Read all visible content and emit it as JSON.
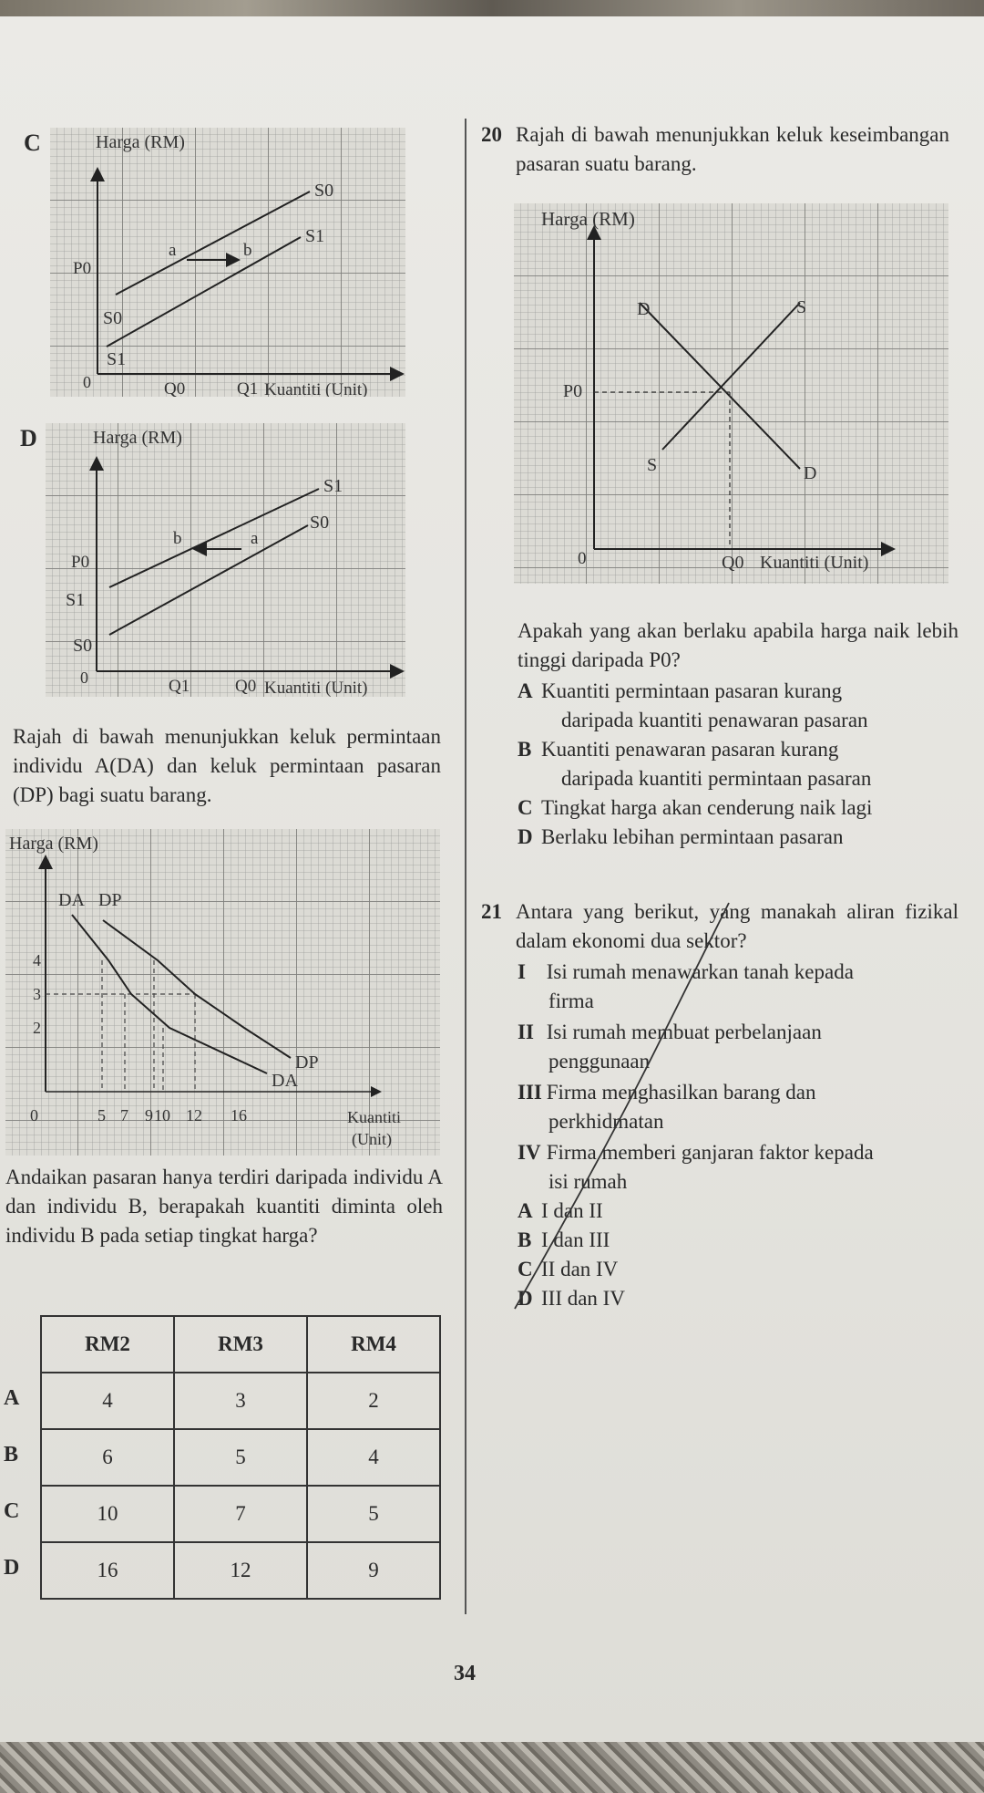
{
  "option_c_chart": {
    "letter": "C",
    "y_label": "Harga (RM)",
    "x_label": "Kuantiti (Unit)",
    "origin": "0",
    "price": "P0",
    "q_a": "Q0",
    "q_b": "Q1",
    "point_a": "a",
    "point_b": "b",
    "upper_curve": "S0",
    "lower_curve": "S1"
  },
  "option_d_chart": {
    "letter": "D",
    "y_label": "Harga (RM)",
    "x_label": "Kuantiti (Unit)",
    "origin": "0",
    "price": "P0",
    "q_a": "Q1",
    "q_b": "Q0",
    "point_a": "a",
    "point_b": "b",
    "upper_curve": "S1",
    "lower_curve": "S0"
  },
  "question19": {
    "stem": "Rajah di bawah menunjukkan keluk permintaan individu A(DA) dan keluk permintaan pasaran (DP) bagi suatu barang.",
    "chart": {
      "y_label": "Harga (RM)",
      "x_label_1": "Kuantiti",
      "x_label_2": "(Unit)",
      "y_ticks": [
        "4",
        "3",
        "2"
      ],
      "x_ticks": [
        "0",
        "5",
        "7",
        "9",
        "10",
        "12",
        "16"
      ],
      "curve_individual": "DA",
      "curve_market": "DP"
    },
    "question": "Andaikan pasaran hanya terdiri daripada individu A dan individu B, berapakah kuantiti diminta oleh individu B pada setiap tingkat harga?",
    "table": {
      "headers": [
        "RM2",
        "RM3",
        "RM4"
      ],
      "rows": [
        {
          "letter": "A",
          "values": [
            "4",
            "3",
            "2"
          ]
        },
        {
          "letter": "B",
          "values": [
            "6",
            "5",
            "4"
          ]
        },
        {
          "letter": "C",
          "values": [
            "10",
            "7",
            "5"
          ]
        },
        {
          "letter": "D",
          "values": [
            "16",
            "12",
            "9"
          ]
        }
      ]
    }
  },
  "question20": {
    "number": "20",
    "stem": "Rajah di bawah menunjukkan keluk keseimbangan pasaran suatu barang.",
    "chart": {
      "y_label": "Harga (RM)",
      "x_label": "Kuantiti (Unit)",
      "origin": "0",
      "price": "P0",
      "quantity": "Q0",
      "demand": "D",
      "supply": "S"
    },
    "question": "Apakah yang akan berlaku apabila harga naik lebih tinggi daripada P0?",
    "options": [
      {
        "letter": "A",
        "lines": [
          "Kuantiti permintaan pasaran kurang",
          "daripada kuantiti penawaran pasaran"
        ]
      },
      {
        "letter": "B",
        "lines": [
          "Kuantiti penawaran pasaran kurang",
          "daripada kuantiti permintaan pasaran"
        ]
      },
      {
        "letter": "C",
        "lines": [
          "Tingkat harga akan cenderung naik lagi"
        ]
      },
      {
        "letter": "D",
        "lines": [
          "Berlaku lebihan permintaan pasaran"
        ]
      }
    ]
  },
  "question21": {
    "number": "21",
    "stem": "Antara yang berikut, yang manakah aliran fizikal dalam ekonomi dua sektor?",
    "statements": [
      {
        "numeral": "I",
        "lines": [
          "Isi rumah menawarkan tanah kepada",
          "firma"
        ]
      },
      {
        "numeral": "II",
        "lines": [
          "Isi rumah membuat perbelanjaan",
          "penggunaan"
        ]
      },
      {
        "numeral": "III",
        "lines": [
          "Firma menghasilkan barang dan",
          "perkhidmatan"
        ]
      },
      {
        "numeral": "IV",
        "lines": [
          "Firma memberi ganjaran faktor kepada",
          "isi rumah"
        ]
      }
    ],
    "options": [
      {
        "letter": "A",
        "text": "I dan II"
      },
      {
        "letter": "B",
        "text": "I dan III"
      },
      {
        "letter": "C",
        "text": "II dan IV"
      },
      {
        "letter": "D",
        "text": "III dan IV"
      }
    ]
  },
  "page_number": "34",
  "colors": {
    "paper": "#e7e6e1",
    "ink": "#2a2a2a",
    "grid": "#555555"
  }
}
